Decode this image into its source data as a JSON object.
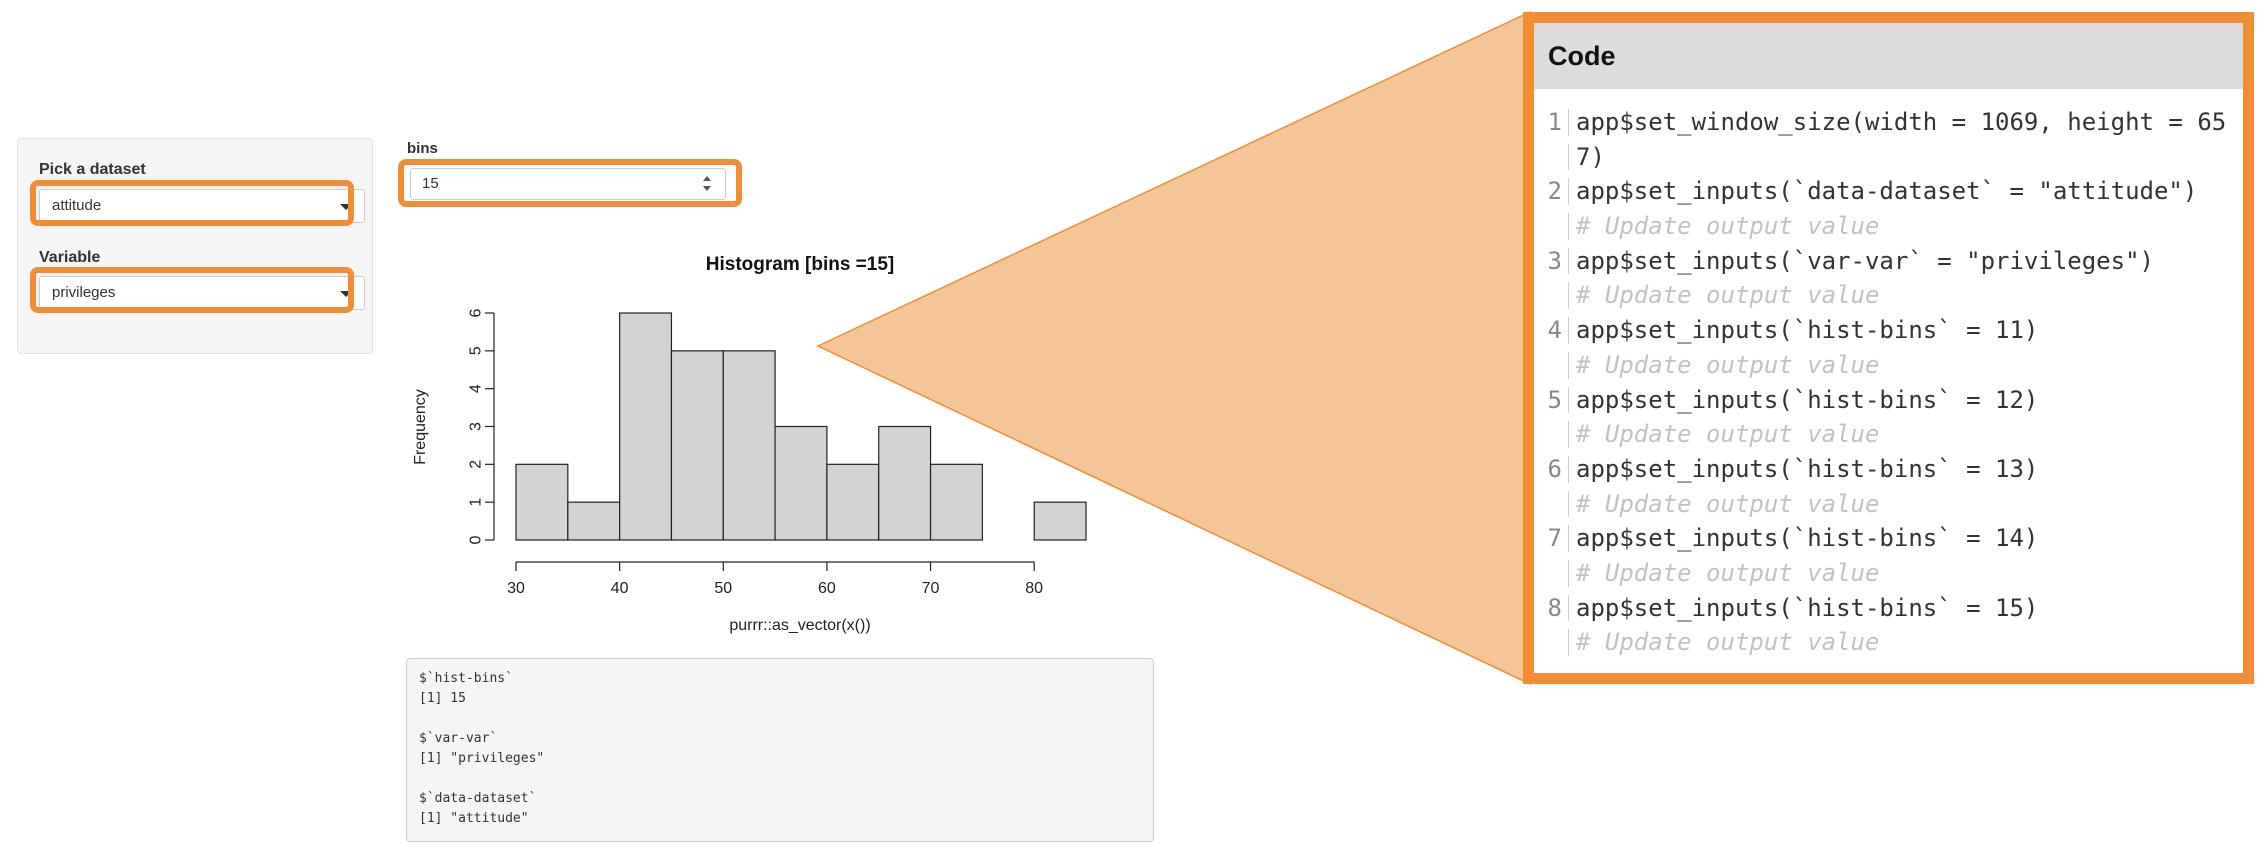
{
  "sidebar": {
    "dataset_label": "Pick a dataset",
    "dataset_value": "attitude",
    "variable_label": "Variable",
    "variable_value": "privileges"
  },
  "bins": {
    "label": "bins",
    "value": "15"
  },
  "chart_data": {
    "type": "bar",
    "title": "Histogram [bins =15]",
    "xlabel": "purrr::as_vector(x())",
    "ylabel": "Frequency",
    "bin_edges": [
      30,
      35,
      40,
      45,
      50,
      55,
      60,
      65,
      70,
      75,
      80,
      85
    ],
    "values": [
      2,
      1,
      6,
      5,
      5,
      3,
      2,
      3,
      2,
      0,
      1
    ],
    "xlim": [
      30,
      85
    ],
    "ylim": [
      0,
      6
    ],
    "x_ticks": [
      "30",
      "40",
      "50",
      "60",
      "70",
      "80"
    ],
    "y_ticks": [
      "0",
      "1",
      "2",
      "3",
      "4",
      "5",
      "6"
    ],
    "bar_color": "#d3d3d3"
  },
  "output": {
    "lines": [
      "$`hist-bins`",
      "[1] 15",
      "",
      "$`var-var`",
      "[1] \"privileges\"",
      "",
      "$`data-dataset`",
      "[1] \"attitude\""
    ]
  },
  "code_panel": {
    "title": "Code",
    "rows": [
      {
        "num": "1",
        "text": "app$set_window_size(width = 1069, height = 65",
        "kind": "code"
      },
      {
        "num": "",
        "text": "7)",
        "kind": "code"
      },
      {
        "num": "2",
        "text": "app$set_inputs(`data-dataset` = \"attitude\")",
        "kind": "code"
      },
      {
        "num": "",
        "text": "# Update output value",
        "kind": "comment"
      },
      {
        "num": "3",
        "text": "app$set_inputs(`var-var` = \"privileges\")",
        "kind": "code"
      },
      {
        "num": "",
        "text": "# Update output value",
        "kind": "comment"
      },
      {
        "num": "4",
        "text": "app$set_inputs(`hist-bins` = 11)",
        "kind": "code"
      },
      {
        "num": "",
        "text": "# Update output value",
        "kind": "comment"
      },
      {
        "num": "5",
        "text": "app$set_inputs(`hist-bins` = 12)",
        "kind": "code"
      },
      {
        "num": "",
        "text": "# Update output value",
        "kind": "comment"
      },
      {
        "num": "6",
        "text": "app$set_inputs(`hist-bins` = 13)",
        "kind": "code"
      },
      {
        "num": "",
        "text": "# Update output value",
        "kind": "comment"
      },
      {
        "num": "7",
        "text": "app$set_inputs(`hist-bins` = 14)",
        "kind": "code"
      },
      {
        "num": "",
        "text": "# Update output value",
        "kind": "comment"
      },
      {
        "num": "8",
        "text": "app$set_inputs(`hist-bins` = 15)",
        "kind": "code"
      },
      {
        "num": "",
        "text": "# Update output value",
        "kind": "comment"
      }
    ]
  },
  "colors": {
    "highlight": "#f08d35",
    "callout_fill": "#f6c596"
  }
}
